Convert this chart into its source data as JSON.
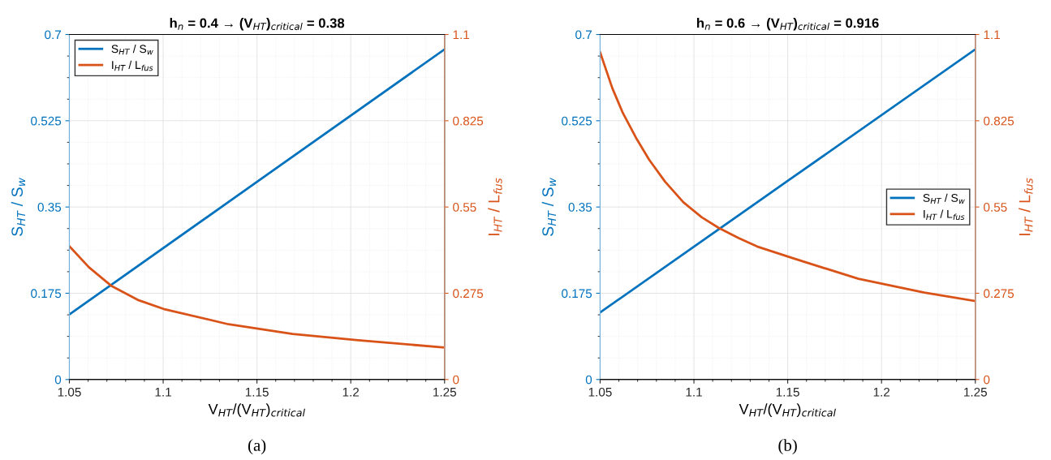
{
  "chart_data": [
    {
      "type": "line",
      "title": "h$_{n}$ = 0.4 → (V$_{HT}$)$_{critical}$ = 0.38",
      "xlabel": "V$_{HT}$/(V$_{HT}$)$_{critical}$",
      "ylabel": "S$_{HT}$ / S$_{w}$",
      "y2label": "I$_{HT}$ / L$_{fus}$",
      "annotations": [
        "(a)"
      ],
      "xlim": [
        1.05,
        1.25
      ],
      "xticks": [
        1.05,
        1.1,
        1.15,
        1.2,
        1.25
      ],
      "ylim": [
        0,
        0.7
      ],
      "yticks": [
        0,
        0.175,
        0.35,
        0.525,
        0.7
      ],
      "y2lim": [
        0,
        1.1
      ],
      "y2ticks": [
        0,
        0.275,
        0.55,
        0.825,
        1.1
      ],
      "grid": true,
      "legend": "top left",
      "series": [
        {
          "name": "S$_{HT}$ / S$_{w}$",
          "color": "#0072bd",
          "x": [
            1.05,
            1.15,
            1.25
          ],
          "values": [
            0.132,
            0.401,
            0.67
          ]
        },
        {
          "name": "I$_{HT}$ / L$_{fus}$",
          "color": "#d95319",
          "axis": "y2",
          "x": [
            1.05,
            1.0604,
            1.0725,
            1.0864,
            1.1002,
            1.1349,
            1.169,
            1.204,
            1.25
          ],
          "values": [
            0.425,
            0.358,
            0.298,
            0.254,
            0.225,
            0.176,
            0.145,
            0.125,
            0.102
          ]
        }
      ]
    },
    {
      "type": "line",
      "title": "h$_{n}$ = 0.6 → (V$_{HT}$)$_{critical}$ = 0.916",
      "xlabel": "V$_{HT}$/(V$_{HT}$)$_{critical}$",
      "ylabel": "S$_{HT}$ / S$_{w}$",
      "y2label": "I$_{HT}$ / L$_{fus}$",
      "annotations": [
        "(b)"
      ],
      "xlim": [
        1.05,
        1.25
      ],
      "xticks": [
        1.05,
        1.1,
        1.15,
        1.2,
        1.25
      ],
      "ylim": [
        0,
        0.7
      ],
      "yticks": [
        0,
        0.175,
        0.35,
        0.525,
        0.7
      ],
      "y2lim": [
        0,
        1.1
      ],
      "y2ticks": [
        0,
        0.275,
        0.55,
        0.825,
        1.1
      ],
      "grid": true,
      "legend": "right",
      "series": [
        {
          "name": "S$_{HT}$ / S$_{w}$",
          "color": "#0072bd",
          "x": [
            1.05,
            1.15,
            1.25
          ],
          "values": [
            0.136,
            0.403,
            0.67
          ]
        },
        {
          "name": "I$_{HT}$ / L$_{fus}$",
          "color": "#d95319",
          "axis": "y2",
          "x": [
            1.05,
            1.0565,
            1.0621,
            1.0691,
            1.0761,
            1.0846,
            1.0944,
            1.1042,
            1.1133,
            1.1239,
            1.1337,
            1.1526,
            1.1877,
            1.2228,
            1.25
          ],
          "values": [
            1.043,
            0.929,
            0.85,
            0.771,
            0.701,
            0.631,
            0.565,
            0.517,
            0.483,
            0.451,
            0.424,
            0.387,
            0.321,
            0.277,
            0.25
          ]
        }
      ]
    }
  ]
}
